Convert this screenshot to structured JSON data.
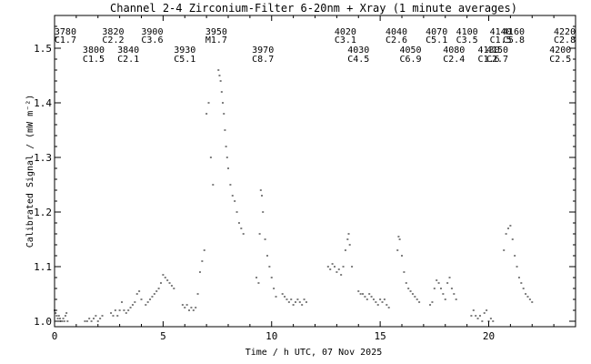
{
  "chart_data": {
    "type": "scatter",
    "title": "Channel 2-4   Zirconium-Filter   6-20nm + Xray   (1 minute averages)",
    "xlabel": "Time / h UTC, 07 Nov 2025",
    "ylabel": "Calibrated Signal / (mW m⁻²)",
    "xlim": [
      0,
      24
    ],
    "ylim": [
      0.99,
      1.56
    ],
    "x_ticks": [
      0,
      5,
      10,
      15,
      20
    ],
    "x_tick_labels": [
      "0",
      "5",
      "10",
      "15",
      "20"
    ],
    "y_ticks": [
      1.0,
      1.1,
      1.2,
      1.3,
      1.4,
      1.5
    ],
    "y_tick_labels": [
      "1.0",
      "1.1",
      "1.2",
      "1.3",
      "1.4",
      "1.5"
    ],
    "point_color": "#7f7f7f",
    "series": [
      {
        "x": [
          0.0,
          0.05,
          0.1,
          0.15,
          0.2,
          0.25,
          0.3,
          0.35,
          0.4,
          0.45,
          0.5,
          0.55,
          0.6,
          1.4,
          1.5,
          1.6,
          1.7,
          1.8,
          1.9,
          2.0,
          2.1,
          2.2,
          2.6,
          2.7,
          2.8,
          2.9,
          3.0,
          3.1,
          3.2,
          3.3,
          3.4,
          3.5,
          3.6,
          3.7,
          3.8,
          3.9,
          4.0,
          4.2,
          4.3,
          4.4,
          4.5,
          4.6,
          4.7,
          4.8,
          4.9,
          5.0,
          5.1,
          5.2,
          5.3,
          5.4,
          5.5,
          5.9,
          6.0,
          6.1,
          6.2,
          6.3,
          6.4,
          6.5,
          6.6,
          6.7,
          6.8,
          6.9,
          7.0,
          7.1,
          7.2,
          7.3,
          7.55,
          7.6,
          7.65,
          7.7,
          7.75,
          7.8,
          7.85,
          7.9,
          7.95,
          8.0,
          8.1,
          8.2,
          8.3,
          8.4,
          8.5,
          8.6,
          8.7,
          9.3,
          9.4,
          9.45,
          9.5,
          9.55,
          9.6,
          9.7,
          9.8,
          9.9,
          10.0,
          10.1,
          10.2,
          10.5,
          10.6,
          10.7,
          10.8,
          10.9,
          11.0,
          11.1,
          11.2,
          11.3,
          11.4,
          11.5,
          11.6,
          12.6,
          12.7,
          12.8,
          12.9,
          13.0,
          13.1,
          13.2,
          13.3,
          13.4,
          13.5,
          13.55,
          13.6,
          13.7,
          14.0,
          14.1,
          14.2,
          14.3,
          14.4,
          14.5,
          14.6,
          14.7,
          14.8,
          14.9,
          15.0,
          15.1,
          15.2,
          15.3,
          15.4,
          15.8,
          15.85,
          15.9,
          16.0,
          16.1,
          16.2,
          16.3,
          16.4,
          16.5,
          16.6,
          16.7,
          16.8,
          17.3,
          17.4,
          17.5,
          17.6,
          17.7,
          17.8,
          17.9,
          18.0,
          18.1,
          18.2,
          18.3,
          18.4,
          18.5,
          19.2,
          19.3,
          19.4,
          19.5,
          19.6,
          19.7,
          19.8,
          19.9,
          20.0,
          20.1,
          20.2,
          20.7,
          20.8,
          20.9,
          21.0,
          21.1,
          21.2,
          21.3,
          21.4,
          21.5,
          21.6,
          21.7,
          21.8,
          21.9,
          22.0
        ],
        "y": [
          1.02,
          1.015,
          1.01,
          1.005,
          1.01,
          1.005,
          1.0,
          1.0,
          1.005,
          1.0,
          1.01,
          1.015,
          1.0,
          1.0,
          1.0,
          1.005,
          1.0,
          1.005,
          1.01,
          1.0,
          1.005,
          1.01,
          1.015,
          1.01,
          1.02,
          1.01,
          1.02,
          1.035,
          1.02,
          1.015,
          1.02,
          1.025,
          1.03,
          1.035,
          1.05,
          1.055,
          1.04,
          1.03,
          1.035,
          1.04,
          1.045,
          1.05,
          1.055,
          1.06,
          1.07,
          1.085,
          1.08,
          1.075,
          1.07,
          1.065,
          1.06,
          1.03,
          1.025,
          1.03,
          1.02,
          1.025,
          1.02,
          1.025,
          1.05,
          1.09,
          1.11,
          1.13,
          1.38,
          1.4,
          1.3,
          1.25,
          1.46,
          1.45,
          1.44,
          1.42,
          1.4,
          1.38,
          1.35,
          1.32,
          1.3,
          1.28,
          1.25,
          1.23,
          1.22,
          1.2,
          1.18,
          1.17,
          1.16,
          1.08,
          1.07,
          1.16,
          1.24,
          1.23,
          1.2,
          1.15,
          1.12,
          1.1,
          1.08,
          1.06,
          1.045,
          1.05,
          1.045,
          1.04,
          1.035,
          1.04,
          1.03,
          1.035,
          1.04,
          1.035,
          1.03,
          1.04,
          1.035,
          1.1,
          1.095,
          1.105,
          1.1,
          1.09,
          1.095,
          1.085,
          1.1,
          1.13,
          1.15,
          1.16,
          1.14,
          1.1,
          1.055,
          1.05,
          1.05,
          1.045,
          1.04,
          1.05,
          1.045,
          1.04,
          1.035,
          1.03,
          1.04,
          1.035,
          1.04,
          1.03,
          1.025,
          1.13,
          1.155,
          1.15,
          1.12,
          1.09,
          1.07,
          1.06,
          1.055,
          1.05,
          1.045,
          1.04,
          1.035,
          1.03,
          1.035,
          1.06,
          1.075,
          1.07,
          1.06,
          1.05,
          1.04,
          1.07,
          1.08,
          1.06,
          1.05,
          1.04,
          1.01,
          1.02,
          1.01,
          1.005,
          1.01,
          1.0,
          1.015,
          1.02,
          1.0,
          1.005,
          1.0,
          1.13,
          1.16,
          1.17,
          1.175,
          1.15,
          1.12,
          1.1,
          1.08,
          1.07,
          1.06,
          1.05,
          1.045,
          1.04,
          1.035
        ]
      }
    ],
    "annotations_top_row": [
      {
        "id": "3780",
        "class": "C1.7",
        "x": 0.5
      },
      {
        "id": "3820",
        "class": "C2.2",
        "x": 2.7
      },
      {
        "id": "3900",
        "class": "C3.6",
        "x": 4.5
      },
      {
        "id": "3950",
        "class": "M1.7",
        "x": 7.45
      },
      {
        "id": "4020",
        "class": "C3.1",
        "x": 13.4
      },
      {
        "id": "4040",
        "class": "C2.6",
        "x": 15.75
      },
      {
        "id": "4070",
        "class": "C5.1",
        "x": 17.6
      },
      {
        "id": "4100",
        "class": "C3.5",
        "x": 19.0
      },
      {
        "id": "4140",
        "class": "C1.5",
        "x": 20.55
      },
      {
        "id": "4160",
        "class": "C5.8",
        "x": 21.15
      },
      {
        "id": "4220",
        "class": "C2.8",
        "x": 23.5
      }
    ],
    "annotations_bottom_row": [
      {
        "id": "3800",
        "class": "C1.5",
        "x": 1.8
      },
      {
        "id": "3840",
        "class": "C2.1",
        "x": 3.4
      },
      {
        "id": "3930",
        "class": "C5.1",
        "x": 6.0
      },
      {
        "id": "3970",
        "class": "C8.7",
        "x": 9.6
      },
      {
        "id": "4030",
        "class": "C4.5",
        "x": 14.0
      },
      {
        "id": "4050",
        "class": "C6.9",
        "x": 16.4
      },
      {
        "id": "4080",
        "class": "C2.4",
        "x": 18.4
      },
      {
        "id": "4130",
        "class": "C1.6",
        "x": 20.0
      },
      {
        "id": "4150",
        "class": "C2.7",
        "x": 20.4
      },
      {
        "id": "4200",
        "class": "C2.5",
        "x": 23.3
      }
    ]
  }
}
